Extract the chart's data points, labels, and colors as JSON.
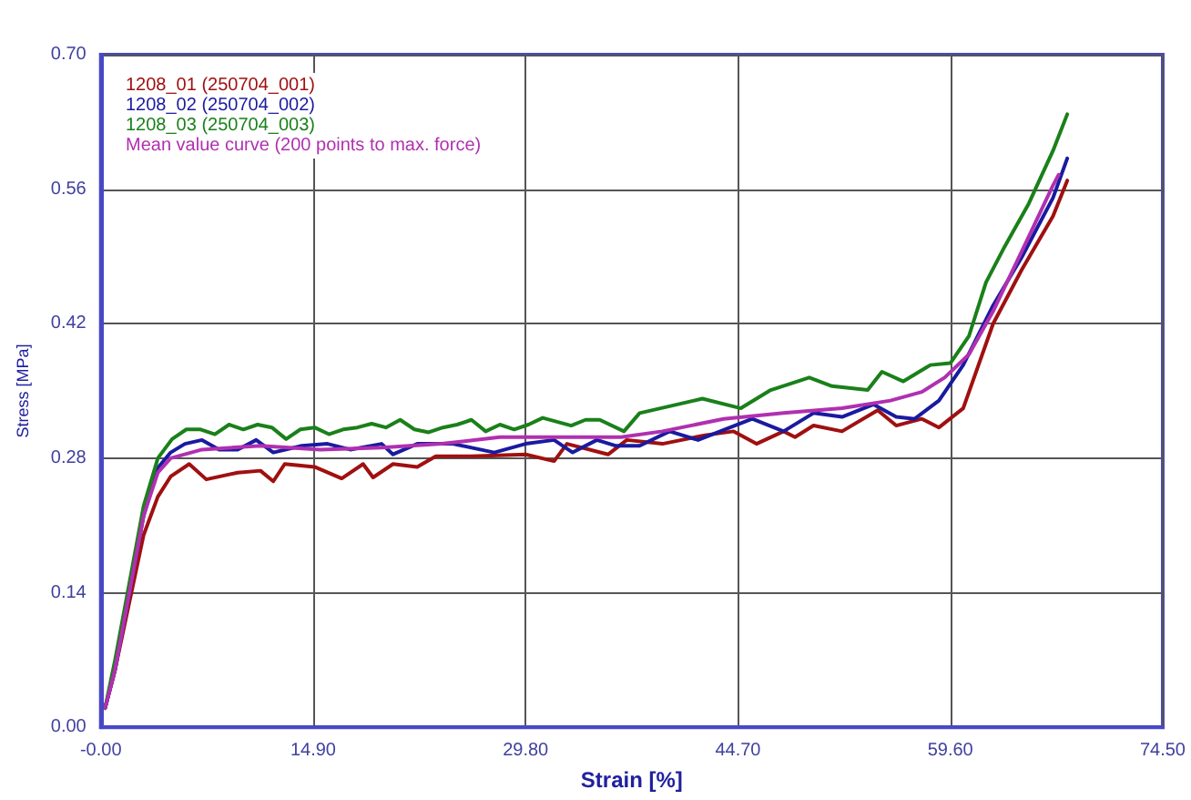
{
  "chart_data": {
    "type": "line",
    "xlabel": "Strain [%]",
    "ylabel": "Stress [MPa]",
    "xlim": [
      0,
      74.5
    ],
    "ylim": [
      0,
      0.7
    ],
    "xticks": [
      {
        "value": 0,
        "label": "-0.00"
      },
      {
        "value": 14.9,
        "label": "14.90"
      },
      {
        "value": 29.8,
        "label": "29.80"
      },
      {
        "value": 44.7,
        "label": "44.70"
      },
      {
        "value": 59.6,
        "label": "59.60"
      },
      {
        "value": 74.5,
        "label": "74.50"
      }
    ],
    "yticks": [
      {
        "value": 0,
        "label": "0.00"
      },
      {
        "value": 0.14,
        "label": "0.14"
      },
      {
        "value": 0.28,
        "label": "0.28"
      },
      {
        "value": 0.42,
        "label": "0.42"
      },
      {
        "value": 0.56,
        "label": "0.56"
      },
      {
        "value": 0.7,
        "label": "0.70"
      }
    ],
    "grid": true,
    "legend": "top left",
    "marker": "none",
    "line_style": "solid",
    "series": [
      {
        "name": "1208_01 (250704_001)",
        "color": "#a01010",
        "x": [
          0.3,
          1,
          2,
          3,
          4,
          4.9,
          6.2,
          7.4,
          9.6,
          11.2,
          12.1,
          12.9,
          15,
          16.9,
          18.4,
          19.1,
          20.5,
          22.2,
          23.5,
          26,
          29.8,
          31.8,
          32.7,
          35.6,
          36.9,
          39.4,
          42.4,
          44.4,
          46,
          47.9,
          48.7,
          50,
          52,
          54.5,
          55.8,
          57.6,
          58.8,
          60.5,
          62.6,
          64.6,
          66.8,
          67.8
        ],
        "values": [
          0.02,
          0.06,
          0.13,
          0.2,
          0.24,
          0.261,
          0.274,
          0.258,
          0.265,
          0.267,
          0.256,
          0.274,
          0.271,
          0.259,
          0.274,
          0.26,
          0.274,
          0.271,
          0.282,
          0.282,
          0.284,
          0.277,
          0.295,
          0.284,
          0.299,
          0.295,
          0.304,
          0.308,
          0.295,
          0.308,
          0.302,
          0.314,
          0.308,
          0.33,
          0.314,
          0.321,
          0.312,
          0.332,
          0.42,
          0.476,
          0.532,
          0.569
        ]
      },
      {
        "name": "1208_02 (250704_002)",
        "color": "#1a1aa0",
        "x": [
          0.3,
          1,
          2,
          3,
          4,
          4.9,
          5.9,
          7.1,
          8.3,
          9.6,
          10.9,
          12.1,
          14.1,
          15.9,
          17.5,
          19.7,
          20.5,
          22.2,
          24.7,
          27.6,
          29.8,
          31.8,
          33.1,
          34.8,
          36.1,
          37.8,
          39.9,
          41.9,
          45.7,
          47.9,
          50,
          52,
          54.2,
          55.8,
          57.1,
          58.8,
          60.5,
          62.6,
          64.6,
          66.8,
          67.8
        ],
        "values": [
          0.02,
          0.06,
          0.14,
          0.22,
          0.27,
          0.286,
          0.295,
          0.299,
          0.289,
          0.289,
          0.299,
          0.286,
          0.293,
          0.295,
          0.289,
          0.295,
          0.284,
          0.295,
          0.295,
          0.286,
          0.295,
          0.299,
          0.286,
          0.299,
          0.293,
          0.293,
          0.308,
          0.299,
          0.321,
          0.308,
          0.327,
          0.323,
          0.336,
          0.323,
          0.321,
          0.34,
          0.377,
          0.439,
          0.489,
          0.551,
          0.592
        ]
      },
      {
        "name": "1208_03 (250704_003)",
        "color": "#1a801a",
        "x": [
          0.3,
          1,
          2,
          3,
          4,
          5,
          6,
          7,
          8,
          9,
          10,
          11,
          12,
          13,
          14,
          15,
          16,
          17,
          18,
          19,
          20,
          21,
          22,
          23,
          24,
          25,
          26,
          27,
          28,
          29,
          30,
          31,
          32,
          33,
          34,
          35,
          36.7,
          37.8,
          42.2,
          44.9,
          47,
          49.7,
          51.3,
          53.8,
          54.8,
          56.3,
          58.2,
          59.6,
          60.9,
          62.1,
          63.4,
          65.1,
          66.8,
          67.8
        ],
        "values": [
          0.02,
          0.07,
          0.15,
          0.23,
          0.28,
          0.3,
          0.31,
          0.31,
          0.305,
          0.315,
          0.31,
          0.315,
          0.312,
          0.3,
          0.31,
          0.312,
          0.305,
          0.31,
          0.312,
          0.316,
          0.312,
          0.32,
          0.31,
          0.307,
          0.312,
          0.315,
          0.32,
          0.308,
          0.315,
          0.31,
          0.315,
          0.322,
          0.318,
          0.314,
          0.32,
          0.32,
          0.308,
          0.327,
          0.342,
          0.332,
          0.351,
          0.364,
          0.355,
          0.351,
          0.37,
          0.36,
          0.377,
          0.379,
          0.407,
          0.463,
          0.5,
          0.545,
          0.6,
          0.638
        ]
      },
      {
        "name": "Mean value curve (200 points to max. force)",
        "color": "#b030b0",
        "x": [
          0.3,
          1,
          2,
          3,
          4,
          4.9,
          7.1,
          11.2,
          15.4,
          19.7,
          23.9,
          28,
          32.3,
          36.5,
          39.4,
          43.7,
          47.9,
          52,
          55.4,
          57.6,
          59.2,
          60.9,
          62.6,
          64.6,
          66.8,
          67.2
        ],
        "values": [
          0.02,
          0.06,
          0.14,
          0.22,
          0.265,
          0.28,
          0.289,
          0.293,
          0.289,
          0.291,
          0.295,
          0.302,
          0.302,
          0.302,
          0.308,
          0.321,
          0.327,
          0.332,
          0.34,
          0.349,
          0.364,
          0.388,
          0.433,
          0.495,
          0.564,
          0.575
        ]
      }
    ]
  }
}
